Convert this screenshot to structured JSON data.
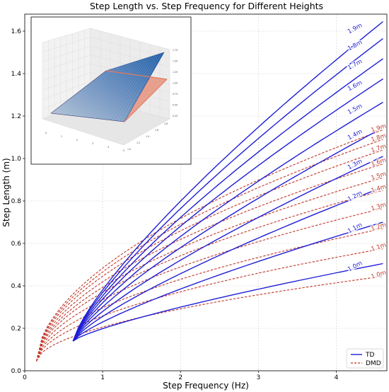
{
  "chart_data": {
    "type": "line",
    "title": "Step Length vs. Step Frequency for Different Heights",
    "xlabel": "Step Frequency (Hz)",
    "ylabel": "Step Length (m)",
    "xlim": [
      0.0,
      4.65
    ],
    "ylim": [
      0.0,
      1.68
    ],
    "xticks": [
      "0",
      "1",
      "2",
      "3",
      "4"
    ],
    "yticks": [
      "0.0",
      "0.2",
      "0.4",
      "0.6",
      "0.8",
      "1.0",
      "1.2",
      "1.4",
      "1.6"
    ],
    "grid": true,
    "legend": {
      "position": "bottom-right",
      "entries": [
        "TD",
        "DMD"
      ]
    },
    "colors": {
      "TD": "#1f1fd6",
      "DMD": "#c0392b"
    },
    "x_range": {
      "TD": [
        0.62,
        4.6
      ],
      "DMD": [
        0.15,
        4.6
      ]
    },
    "series": [
      {
        "name": "TD",
        "height_label": "1.0m",
        "start": [
          0.62,
          0.14
        ],
        "end": [
          4.6,
          0.505
        ],
        "label_at": [
          4.25,
          0.485
        ]
      },
      {
        "name": "TD",
        "height_label": "1.1m",
        "start": [
          0.62,
          0.14
        ],
        "end": [
          4.6,
          0.7
        ],
        "label_at": [
          4.25,
          0.665
        ]
      },
      {
        "name": "TD",
        "height_label": "1.2m",
        "start": [
          0.62,
          0.14
        ],
        "end": [
          4.6,
          0.865
        ],
        "label_at": [
          4.25,
          0.815
        ]
      },
      {
        "name": "TD",
        "height_label": "1.3m",
        "start": [
          0.62,
          0.14
        ],
        "end": [
          4.6,
          1.01
        ],
        "label_at": [
          4.25,
          0.965
        ]
      },
      {
        "name": "TD",
        "height_label": "1.4m",
        "start": [
          0.62,
          0.14
        ],
        "end": [
          4.6,
          1.145
        ],
        "label_at": [
          4.25,
          1.105
        ]
      },
      {
        "name": "TD",
        "height_label": "1.5m",
        "start": [
          0.62,
          0.14
        ],
        "end": [
          4.6,
          1.265
        ],
        "label_at": [
          4.25,
          1.225
        ]
      },
      {
        "name": "TD",
        "height_label": "1.6m",
        "start": [
          0.62,
          0.14
        ],
        "end": [
          4.6,
          1.375
        ],
        "label_at": [
          4.25,
          1.335
        ]
      },
      {
        "name": "TD",
        "height_label": "1.7m",
        "start": [
          0.62,
          0.14
        ],
        "end": [
          4.6,
          1.47
        ],
        "label_at": [
          4.25,
          1.435
        ]
      },
      {
        "name": "TD",
        "height_label": "1.8m",
        "start": [
          0.62,
          0.14
        ],
        "end": [
          4.6,
          1.565
        ],
        "label_at": [
          4.25,
          1.525
        ]
      },
      {
        "name": "TD",
        "height_label": "1.9m",
        "start": [
          0.62,
          0.14
        ],
        "end": [
          4.6,
          1.645
        ],
        "label_at": [
          4.25,
          1.605
        ]
      },
      {
        "name": "DMD",
        "height_label": "1.0m",
        "start": [
          0.15,
          0.045
        ],
        "end": [
          4.6,
          0.445
        ],
        "label_at": [
          4.55,
          0.445
        ]
      },
      {
        "name": "DMD",
        "height_label": "1.1m",
        "start": [
          0.15,
          0.045
        ],
        "end": [
          4.6,
          0.575
        ],
        "label_at": [
          4.55,
          0.575
        ]
      },
      {
        "name": "DMD",
        "height_label": "1.2m",
        "start": [
          0.15,
          0.045
        ],
        "end": [
          4.6,
          0.67
        ],
        "label_at": [
          4.55,
          0.67
        ]
      },
      {
        "name": "DMD",
        "height_label": "1.3m",
        "start": [
          0.15,
          0.045
        ],
        "end": [
          4.6,
          0.765
        ],
        "label_at": [
          4.55,
          0.765
        ]
      },
      {
        "name": "DMD",
        "height_label": "1.4m",
        "start": [
          0.15,
          0.045
        ],
        "end": [
          4.6,
          0.85
        ],
        "label_at": [
          4.55,
          0.85
        ]
      },
      {
        "name": "DMD",
        "height_label": "1.5m",
        "start": [
          0.15,
          0.045
        ],
        "end": [
          4.6,
          0.91
        ],
        "label_at": [
          4.55,
          0.91
        ]
      },
      {
        "name": "DMD",
        "height_label": "1.6m",
        "start": [
          0.15,
          0.045
        ],
        "end": [
          4.6,
          0.975
        ],
        "label_at": [
          4.55,
          0.975
        ]
      },
      {
        "name": "DMD",
        "height_label": "1.7m",
        "start": [
          0.15,
          0.045
        ],
        "end": [
          4.6,
          1.04
        ],
        "label_at": [
          4.55,
          1.04
        ]
      },
      {
        "name": "DMD",
        "height_label": "1.8m",
        "start": [
          0.15,
          0.045
        ],
        "end": [
          4.6,
          1.09
        ],
        "label_at": [
          4.55,
          1.09
        ]
      },
      {
        "name": "DMD",
        "height_label": "1.9m",
        "start": [
          0.15,
          0.045
        ],
        "end": [
          4.6,
          1.135
        ],
        "label_at": [
          4.55,
          1.135
        ]
      }
    ],
    "inset": {
      "type": "surface",
      "zticks": [
        "0.25",
        "0.50",
        "0.75",
        "1.00",
        "1.25",
        "1.50",
        "1.75"
      ],
      "xticks": [
        "0",
        "1",
        "2",
        "3",
        "4",
        "5"
      ],
      "yticks": [
        "1.0",
        "1.2",
        "1.4",
        "1.6",
        "1.8"
      ]
    }
  }
}
